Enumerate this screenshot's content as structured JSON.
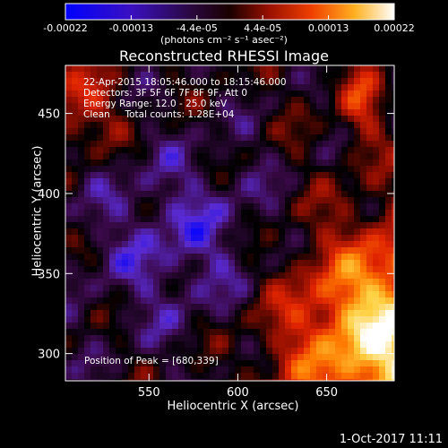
{
  "chart_data": {
    "type": "heatmap",
    "title": "Reconstructed RHESSI Image",
    "xlabel": "Heliocentric X (arcsec)",
    "ylabel": "Heliocentric Y (arcsec)",
    "x_ticks": [
      550,
      600,
      650
    ],
    "y_ticks": [
      300,
      350,
      400,
      450
    ],
    "xlim": [
      503,
      688
    ],
    "ylim": [
      283,
      480
    ],
    "colorbar": {
      "ticks": [
        "-0.00022",
        "-0.00013",
        "-4.4e-05",
        "4.4e-05",
        "0.00013",
        "0.00022"
      ],
      "units": "(photons cm⁻² s⁻¹ asec⁻²)",
      "range": [
        -0.00022,
        0.00022
      ],
      "colormap": [
        "#0000ff",
        "#5a2bd4",
        "#3b0a4a",
        "#000000",
        "#8a0d00",
        "#e02400",
        "#ff7a00",
        "#ffd040",
        "#ffffff"
      ]
    },
    "annotations": [
      "22-Apr-2015 18:05:46.000 to 18:15:46.000",
      "Detectors: 3F 5F 6F 7F 8F 9F, Att 0",
      "Energy Range: 12.0 - 25.0 keV",
      "Clean     Total counts: 1.28E+04"
    ],
    "peak_label": "Position of Peak = [680,339]"
  },
  "footer": "1-Oct-2017 11:11"
}
